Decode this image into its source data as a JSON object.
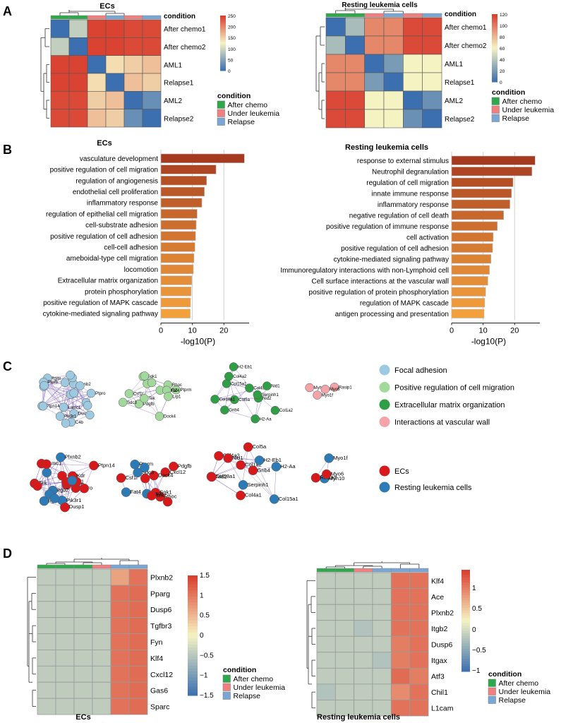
{
  "palette": {
    "after_chemo": "#2ea84a",
    "under_leukemia": "#f08080",
    "relapse": "#7aa6d6",
    "heat_low": "#3b6fb0",
    "heat_mid": "#f6f3c3",
    "heat_high": "#d93b2b",
    "bar_dark": "#a53a1f",
    "bar_light": "#f2a03c",
    "net_focal": "#9ecae1",
    "net_posreg": "#a1d99b",
    "net_ecm": "#2f9e44",
    "net_vasc": "#f4a3a8",
    "net_ecs": "#d7191c",
    "net_resting": "#2c7bb6"
  },
  "panels": {
    "a": "A",
    "b": "B",
    "c": "C",
    "d": "D"
  },
  "condition_legend": {
    "title": "condition",
    "items": [
      "After chemo",
      "Under leukemia",
      "Relapse"
    ]
  },
  "chart_data": [
    {
      "id": "a_ecs",
      "type": "heatmap",
      "title": "ECs",
      "annotation_label": "condition",
      "rows": [
        "After chemo1",
        "After chemo2",
        "AML1",
        "Relapse1",
        "AML2",
        "Relapse2"
      ],
      "col_conditions": [
        "After chemo",
        "After chemo",
        "Under leukemia",
        "Relapse",
        "Under leukemia",
        "Relapse"
      ],
      "matrix": [
        [
          0,
          90,
          245,
          245,
          240,
          240
        ],
        [
          90,
          0,
          245,
          245,
          240,
          240
        ],
        [
          245,
          245,
          0,
          140,
          150,
          160
        ],
        [
          245,
          245,
          140,
          0,
          160,
          150
        ],
        [
          240,
          240,
          150,
          160,
          0,
          30
        ],
        [
          240,
          240,
          160,
          150,
          30,
          0
        ]
      ],
      "scale_range": [
        0,
        250
      ],
      "scale_ticks": [
        "250",
        "200",
        "150",
        "100",
        "50",
        "0"
      ]
    },
    {
      "id": "a_rest",
      "type": "heatmap",
      "title": "Resting leukemia cells",
      "annotation_label": "condition",
      "rows": [
        "After chemo1",
        "After chemo2",
        "AML1",
        "Relapse1",
        "AML2",
        "Relapse2"
      ],
      "col_conditions": [
        "After chemo",
        "After chemo",
        "Under leukemia",
        "Relapse",
        "Under leukemia",
        "Relapse"
      ],
      "matrix": [
        [
          0,
          35,
          95,
          95,
          115,
          115
        ],
        [
          35,
          0,
          95,
          95,
          115,
          115
        ],
        [
          95,
          95,
          0,
          20,
          60,
          60
        ],
        [
          95,
          95,
          20,
          0,
          60,
          60
        ],
        [
          115,
          115,
          60,
          60,
          0,
          15
        ],
        [
          115,
          115,
          60,
          60,
          15,
          0
        ]
      ],
      "scale_range": [
        0,
        120
      ],
      "scale_ticks": [
        "120",
        "100",
        "80",
        "60",
        "40",
        "20",
        "0"
      ]
    },
    {
      "id": "b_ecs",
      "type": "bar",
      "title": "ECs",
      "xlabel": "-log10(P)",
      "xlim": [
        0,
        28
      ],
      "xticks": [
        "0",
        "10",
        "20"
      ],
      "categories": [
        "vasculature development",
        "positive regulation of cell migration",
        "regulation of angiogenesis",
        "endothelial cell proliferation",
        "inflammatory response",
        "regulation of epithelial cell migration",
        "cell-substrate adhesion",
        "positive regulation of cell adhesion",
        "cell-cell adhesion",
        "ameboidal-type cell migration",
        "locomotion",
        "Extracellular matrix organization",
        "protein phosphorylation",
        "positive regulation of MAPK cascade",
        "cytokine-mediated signaling pathway"
      ],
      "values": [
        26.5,
        17.5,
        14.5,
        13.8,
        13,
        11.5,
        11.2,
        11,
        10.8,
        10.5,
        10.3,
        9.8,
        9.6,
        9.4,
        9.3
      ]
    },
    {
      "id": "b_rest",
      "type": "bar",
      "title": "Resting leukemia cells",
      "xlabel": "-log10(P)",
      "xlim": [
        0,
        28
      ],
      "xticks": [
        "0",
        "10",
        "20"
      ],
      "categories": [
        "response to external stimulus",
        "Neutrophil degranulation",
        "regulation of cell migration",
        "innate immune response",
        "inflammatory response",
        "negative regulation of cell death",
        "positive regulation of immune response",
        "cell activation",
        "positive regulation of cell adhesion",
        "cytokine-mediated signaling pathway",
        "Immunoregulatory interactions with non-Lymphoid cell",
        "Cell surface interactions at the vascular wall",
        "positive regulation of protein phosphorylation",
        "regulation of MAPK cascade",
        "antigen processing and presentation"
      ],
      "values": [
        26.5,
        25.5,
        19.5,
        19,
        18.5,
        16.5,
        14.5,
        13.2,
        13,
        12.5,
        12,
        11.5,
        10.8,
        10.5,
        10.3
      ]
    },
    {
      "id": "d_ecs",
      "type": "heatmap",
      "title": "ECs",
      "annotation_label": "condition",
      "rows": [
        "Plxnb2",
        "Pparg",
        "Dusp6",
        "Tgfbr3",
        "Fyn",
        "Klf4",
        "Cxcl12",
        "Gas6",
        "Sparc"
      ],
      "col_conditions": [
        "After chemo",
        "After chemo",
        "After chemo",
        "Under leukemia",
        "Relapse",
        "Relapse"
      ],
      "matrix": [
        [
          -0.45,
          -0.45,
          -0.45,
          -0.45,
          0.65,
          1.05
        ],
        [
          -0.45,
          -0.45,
          -0.45,
          -0.45,
          1.05,
          1.1
        ],
        [
          -0.45,
          -0.45,
          -0.45,
          -0.45,
          1.05,
          1.1
        ],
        [
          -0.45,
          -0.45,
          -0.45,
          -0.45,
          1.05,
          1.1
        ],
        [
          -0.45,
          -0.45,
          -0.45,
          -0.45,
          1.05,
          1.1
        ],
        [
          -0.45,
          -0.45,
          -0.45,
          -0.45,
          1.05,
          1.1
        ],
        [
          -0.45,
          -0.45,
          -0.45,
          -0.45,
          1.05,
          1.1
        ],
        [
          -0.45,
          -0.45,
          -0.45,
          -0.45,
          1.05,
          1.1
        ],
        [
          -0.45,
          -0.45,
          -0.45,
          -0.45,
          1.05,
          1.1
        ]
      ],
      "scale_range": [
        -1.5,
        1.5
      ],
      "scale_ticks": [
        "1.5",
        "1",
        "0.5",
        "0",
        "−0.5",
        "−1",
        "−1.5"
      ]
    },
    {
      "id": "d_rest",
      "type": "heatmap",
      "title": "Resting leukemia cells",
      "annotation_label": "condition",
      "rows": [
        "Klf4",
        "Ace",
        "Plxnb2",
        "Itgb2",
        "Dusp6",
        "Itgax",
        "Atf3",
        "Chil1",
        "L1cam"
      ],
      "col_conditions": [
        "After chemo",
        "After chemo",
        "Under leukemia",
        "Relapse",
        "Relapse",
        "Relapse"
      ],
      "matrix": [
        [
          -0.45,
          -0.45,
          -0.45,
          -0.45,
          1.05,
          1.05
        ],
        [
          -0.45,
          -0.45,
          -0.45,
          -0.45,
          1.05,
          1.05
        ],
        [
          -0.45,
          -0.45,
          -0.45,
          -0.45,
          1.05,
          1.05
        ],
        [
          -0.45,
          -0.45,
          -0.55,
          -0.45,
          1.05,
          1.05
        ],
        [
          -0.45,
          -0.45,
          -0.45,
          -0.45,
          0.95,
          1.05
        ],
        [
          -0.45,
          -0.45,
          -0.45,
          -0.55,
          0.95,
          1.05
        ],
        [
          -0.45,
          -0.45,
          -0.45,
          -0.45,
          1.1,
          0.95
        ],
        [
          -0.55,
          -0.45,
          -0.45,
          -0.45,
          0.85,
          1.05
        ],
        [
          -0.45,
          -0.45,
          -0.45,
          -0.45,
          1.05,
          1.05
        ]
      ],
      "scale_range": [
        -1.5,
        1.5
      ],
      "scale_ticks": [
        "1",
        "0.5",
        "0",
        "−0.5",
        "−1"
      ]
    }
  ],
  "network": {
    "legend_top": [
      "Focal adhesion",
      "Positive regulation of cell migration",
      "Extracellular matrix organization",
      "Interactions at vascular wall"
    ],
    "legend_bottom": [
      "ECs",
      "Resting leukemia cells"
    ],
    "clusters": [
      {
        "id": "focal",
        "nodes": [
          "Itgax",
          "Lamc1",
          "C4b",
          "Dusp1",
          "Plxnb2",
          "Nrp1",
          "Flt1",
          "Ptprb",
          "Ptpro",
          "Pik3r1",
          "Ptpn14",
          "Actn1",
          "Itgb2",
          "Kdr",
          "Tek",
          "Cdh5",
          "Fyn",
          "Itga5",
          "Vcl",
          "Tln1",
          "Pxn",
          "Zyx"
        ],
        "labeled_top": [
          "Itgax",
          "Lamc1",
          "C4b",
          "Dusp1",
          "Plxnb2",
          "Ptprb",
          "Ptpro",
          "Pik3r1",
          "Ptpn14"
        ],
        "labeled_bottom": [
          "Itgax",
          "Lamc1",
          "Dusp1",
          "Plxnb2",
          "Ptprb",
          "Ptpro",
          "Pik3r1",
          "Ptpn14",
          "Actn1",
          "Itgb2",
          "Kdr",
          "Tek"
        ]
      },
      {
        "id": "posreg",
        "nodes": [
          "Ptprm",
          "Rhoc",
          "Cxcl12",
          "Fat4",
          "Pdgfb",
          "Sgk1",
          "Lrp1",
          "Dock4",
          "Csf1r",
          "Sdc3",
          "Tek",
          "Klf4",
          "Rhob",
          "Dusp1"
        ],
        "labeled": [
          "Ptprm",
          "Rhoc",
          "Cxcl12",
          "Fat4",
          "Pdgfb",
          "Sgk1",
          "Lrp1",
          "Dock4",
          "Csf1r",
          "Sdc3",
          "Tek"
        ]
      },
      {
        "id": "ecm",
        "nodes": [
          "H2-Aa",
          "Col5a",
          "Col18a1",
          "Col15a1",
          "Nid2",
          "Col4a1",
          "Serpinh1",
          "Col1a2",
          "Col4a2",
          "H2-Eb1",
          "Nid1",
          "Gnb4"
        ],
        "labeled": [
          "H2-Aa",
          "Col5a",
          "Col18a1",
          "Col15a1",
          "Nid2",
          "Col4a1",
          "Serpinh1",
          "Col1a2",
          "Col4a2",
          "H2-Eb1",
          "Nid1",
          "Gnb4"
        ]
      },
      {
        "id": "vasc",
        "nodes": [
          "Myh10",
          "Rasip1",
          "Myo6",
          "Myo1f"
        ],
        "labeled": [
          "Myh10",
          "Rasip1",
          "Myo6",
          "Myo1f"
        ]
      }
    ]
  }
}
